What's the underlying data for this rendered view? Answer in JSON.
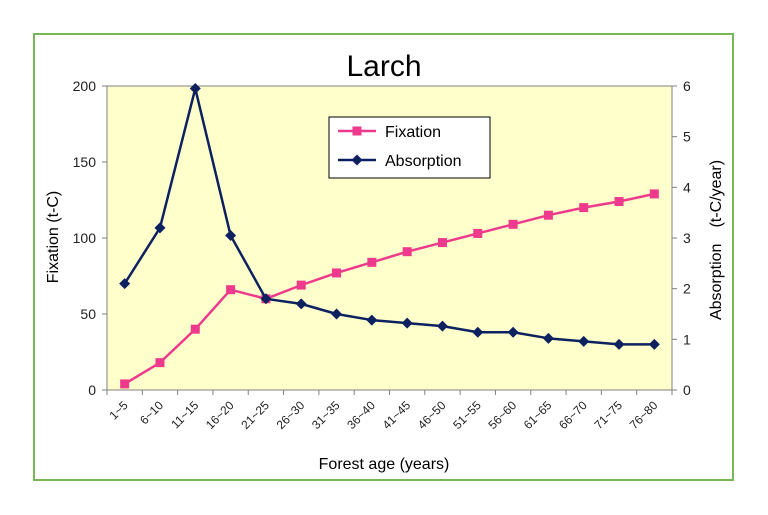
{
  "chart_data": {
    "type": "line",
    "title": "Larch",
    "xlabel": "Forest age (years)",
    "ylabel_left": "Fixation (t-C)",
    "ylabel_right": "Absorption　(t-C/year)",
    "categories": [
      "1~5",
      "6~10",
      "11~15",
      "16~20",
      "21~25",
      "26~30",
      "31~35",
      "36~40",
      "41~45",
      "46~50",
      "51~55",
      "56~60",
      "61~65",
      "66~70",
      "71~75",
      "76~80"
    ],
    "y_left": {
      "min": 0,
      "max": 200,
      "ticks": [
        0,
        50,
        100,
        150,
        200
      ]
    },
    "y_right": {
      "min": 0,
      "max": 6,
      "ticks": [
        0,
        1,
        2,
        3,
        4,
        5,
        6
      ]
    },
    "series": [
      {
        "name": "Fixation",
        "axis": "left",
        "color": "#ee3a8c",
        "marker": "square",
        "values": [
          4,
          18,
          40,
          66,
          60,
          69,
          77,
          84,
          91,
          97,
          103,
          109,
          115,
          120,
          124,
          129
        ]
      },
      {
        "name": "Absorption",
        "axis": "right",
        "color": "#0d2160",
        "marker": "diamond",
        "values": [
          2.1,
          3.2,
          5.95,
          3.05,
          1.8,
          1.7,
          1.5,
          1.38,
          1.32,
          1.26,
          1.14,
          1.14,
          1.02,
          0.96,
          0.9,
          0.9
        ]
      }
    ],
    "legend_position": "top-right",
    "plot_background": "#ffffcc"
  }
}
